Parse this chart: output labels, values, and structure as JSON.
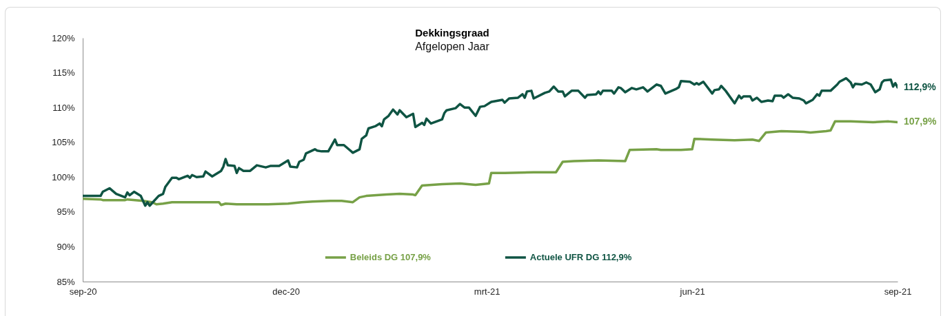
{
  "chart_data": {
    "type": "line",
    "title": "Dekkingsgraad",
    "subtitle": "Afgelopen Jaar",
    "xlim": [
      "2020-09-01",
      "2021-09-01"
    ],
    "xticks": [
      {
        "value": "2020-09-01",
        "label": "sep-20"
      },
      {
        "value": "2020-12-01",
        "label": "dec-20"
      },
      {
        "value": "2021-03-01",
        "label": "mrt-21"
      },
      {
        "value": "2021-06-01",
        "label": "jun-21"
      },
      {
        "value": "2021-09-01",
        "label": "sep-21"
      }
    ],
    "ylim": [
      85,
      120
    ],
    "yticks": [
      {
        "value": 85,
        "label": "85%"
      },
      {
        "value": 90,
        "label": "90%"
      },
      {
        "value": 95,
        "label": "95%"
      },
      {
        "value": 100,
        "label": "100%"
      },
      {
        "value": 105,
        "label": "105%"
      },
      {
        "value": 110,
        "label": "110%"
      },
      {
        "value": 115,
        "label": "115%"
      },
      {
        "value": 120,
        "label": "120%"
      }
    ],
    "legend": "bottom",
    "line_style": "solid",
    "series": [
      {
        "name": "Beleids DG 107,9%",
        "color": "#77a147",
        "x": [
          "2020-09-01",
          "2020-09-09",
          "2020-09-10",
          "2020-09-20",
          "2020-09-21",
          "2020-09-28",
          "2020-10-02",
          "2020-10-04",
          "2020-10-07",
          "2020-10-11",
          "2020-11-01",
          "2020-11-02",
          "2020-11-04",
          "2020-11-09",
          "2020-11-15",
          "2020-11-23",
          "2020-12-02",
          "2020-12-08",
          "2020-12-13",
          "2020-12-21",
          "2020-12-26",
          "2020-12-31",
          "2021-01-03",
          "2021-01-06",
          "2021-01-15",
          "2021-01-21",
          "2021-01-27",
          "2021-01-28",
          "2021-01-31",
          "2021-02-09",
          "2021-02-17",
          "2021-02-24",
          "2021-03-02",
          "2021-03-03",
          "2021-03-09",
          "2021-03-22",
          "2021-04-01",
          "2021-04-04",
          "2021-04-09",
          "2021-04-20",
          "2021-05-02",
          "2021-05-04",
          "2021-05-16",
          "2021-05-18",
          "2021-05-27",
          "2021-06-01",
          "2021-06-02",
          "2021-06-10",
          "2021-06-20",
          "2021-06-28",
          "2021-07-01",
          "2021-07-04",
          "2021-07-11",
          "2021-07-21",
          "2021-07-24",
          "2021-07-31",
          "2021-08-02",
          "2021-08-04",
          "2021-08-11",
          "2021-08-21",
          "2021-08-28",
          "2021-09-01"
        ],
        "values": [
          96.9,
          96.8,
          96.7,
          96.7,
          96.8,
          96.6,
          96.4,
          96.1,
          96.2,
          96.4,
          96.4,
          96.0,
          96.2,
          96.1,
          96.1,
          96.1,
          96.2,
          96.4,
          96.5,
          96.6,
          96.6,
          96.4,
          97.1,
          97.3,
          97.5,
          97.6,
          97.5,
          97.4,
          98.8,
          99.0,
          99.1,
          98.9,
          99.1,
          100.6,
          100.6,
          100.7,
          100.7,
          102.2,
          102.3,
          102.4,
          102.3,
          103.9,
          104.0,
          103.9,
          103.9,
          104.0,
          105.5,
          105.4,
          105.3,
          105.4,
          105.2,
          106.4,
          106.6,
          106.5,
          106.4,
          106.6,
          106.7,
          108.0,
          108.0,
          107.9,
          108.0,
          107.9
        ],
        "value_labels": [
          null,
          null,
          null,
          null,
          null,
          null,
          null,
          null,
          null,
          null,
          null,
          null,
          null,
          null,
          null,
          null,
          null,
          null,
          null,
          null,
          null,
          null,
          null,
          null,
          null,
          null,
          null,
          null,
          null,
          null,
          null,
          null,
          null,
          null,
          null,
          null,
          null,
          null,
          null,
          null,
          null,
          null,
          null,
          null,
          null,
          null,
          null,
          null,
          null,
          null,
          null,
          null,
          null,
          null,
          null,
          null,
          null,
          null,
          null,
          null,
          null,
          "107,9%"
        ]
      },
      {
        "name": "Actuele UFR DG 112,9%",
        "color": "#0f5443",
        "x": [
          "2020-09-01",
          "2020-09-09",
          "2020-09-10",
          "2020-09-13",
          "2020-09-16",
          "2020-09-20",
          "2020-09-21",
          "2020-09-22",
          "2020-09-24",
          "2020-09-27",
          "2020-09-29",
          "2020-09-30",
          "2020-10-01",
          "2020-10-05",
          "2020-10-07",
          "2020-10-08",
          "2020-10-11",
          "2020-10-13",
          "2020-10-14",
          "2020-10-18",
          "2020-10-19",
          "2020-10-20",
          "2020-10-22",
          "2020-10-25",
          "2020-10-26",
          "2020-10-29",
          "2020-11-02",
          "2020-11-03",
          "2020-11-04",
          "2020-11-05",
          "2020-11-08",
          "2020-11-09",
          "2020-11-10",
          "2020-11-12",
          "2020-11-15",
          "2020-11-18",
          "2020-11-22",
          "2020-11-24",
          "2020-11-28",
          "2020-12-02",
          "2020-12-03",
          "2020-12-06",
          "2020-12-07",
          "2020-12-09",
          "2020-12-10",
          "2020-12-14",
          "2020-12-15",
          "2020-12-17",
          "2020-12-20",
          "2020-12-23",
          "2020-12-24",
          "2020-12-27",
          "2020-12-31",
          "2021-01-03",
          "2021-01-04",
          "2021-01-06",
          "2021-01-07",
          "2021-01-10",
          "2021-01-12",
          "2021-01-13",
          "2021-01-14",
          "2021-01-16",
          "2021-01-18",
          "2021-01-20",
          "2021-01-21",
          "2021-01-24",
          "2021-01-27",
          "2021-01-28",
          "2021-01-31",
          "2021-02-01",
          "2021-02-02",
          "2021-02-04",
          "2021-02-09",
          "2021-02-10",
          "2021-02-11",
          "2021-02-15",
          "2021-02-17",
          "2021-02-19",
          "2021-02-21",
          "2021-02-24",
          "2021-02-26",
          "2021-02-28",
          "2021-03-02",
          "2021-03-03",
          "2021-03-08",
          "2021-03-09",
          "2021-03-11",
          "2021-03-15",
          "2021-03-17",
          "2021-03-18",
          "2021-03-19",
          "2021-03-21",
          "2021-03-22",
          "2021-03-27",
          "2021-03-29",
          "2021-03-31",
          "2021-04-02",
          "2021-04-04",
          "2021-04-05",
          "2021-04-08",
          "2021-04-11",
          "2021-04-14",
          "2021-04-15",
          "2021-04-19",
          "2021-04-20",
          "2021-04-21",
          "2021-04-22",
          "2021-04-26",
          "2021-04-27",
          "2021-04-29",
          "2021-04-30",
          "2021-05-02",
          "2021-05-05",
          "2021-05-07",
          "2021-05-10",
          "2021-05-12",
          "2021-05-16",
          "2021-05-18",
          "2021-05-20",
          "2021-05-25",
          "2021-05-26",
          "2021-05-27",
          "2021-05-31",
          "2021-06-02",
          "2021-06-03",
          "2021-06-04",
          "2021-06-06",
          "2021-06-10",
          "2021-06-11",
          "2021-06-13",
          "2021-06-14",
          "2021-06-16",
          "2021-06-20",
          "2021-06-22",
          "2021-06-23",
          "2021-06-24",
          "2021-06-27",
          "2021-06-28",
          "2021-06-30",
          "2021-07-02",
          "2021-07-05",
          "2021-07-07",
          "2021-07-08",
          "2021-07-11",
          "2021-07-12",
          "2021-07-14",
          "2021-07-16",
          "2021-07-19",
          "2021-07-21",
          "2021-07-22",
          "2021-07-25",
          "2021-07-27",
          "2021-07-28",
          "2021-07-29",
          "2021-08-02",
          "2021-08-05",
          "2021-08-06",
          "2021-08-09",
          "2021-08-11",
          "2021-08-12",
          "2021-08-13",
          "2021-08-16",
          "2021-08-18",
          "2021-08-20",
          "2021-08-22",
          "2021-08-24",
          "2021-08-25",
          "2021-08-26",
          "2021-08-29",
          "2021-08-30",
          "2021-08-31",
          "2021-09-01"
        ],
        "values": [
          97.3,
          97.3,
          97.9,
          98.4,
          97.6,
          97.1,
          97.8,
          97.4,
          97.9,
          97.3,
          95.9,
          96.4,
          95.9,
          97.3,
          97.6,
          98.6,
          99.9,
          99.9,
          99.7,
          100.2,
          99.9,
          100.3,
          100.0,
          100.1,
          100.8,
          100.1,
          100.9,
          101.5,
          102.6,
          101.7,
          101.6,
          100.6,
          101.3,
          100.9,
          100.9,
          101.7,
          101.4,
          101.6,
          101.6,
          102.4,
          101.5,
          101.4,
          102.2,
          102.5,
          103.4,
          104.0,
          103.8,
          103.7,
          103.7,
          105.4,
          104.6,
          104.6,
          103.5,
          104.0,
          105.5,
          106.0,
          107.0,
          107.3,
          107.7,
          107.3,
          108.3,
          108.8,
          109.7,
          109.0,
          109.6,
          108.6,
          109.1,
          107.2,
          107.8,
          107.5,
          108.4,
          107.7,
          108.3,
          109.2,
          109.6,
          109.9,
          110.5,
          110.0,
          110.0,
          108.8,
          110.1,
          110.2,
          110.6,
          110.8,
          111.1,
          110.7,
          111.3,
          111.4,
          111.9,
          111.4,
          112.3,
          112.4,
          111.3,
          112.1,
          112.3,
          113.0,
          112.3,
          112.3,
          111.6,
          112.4,
          112.4,
          111.4,
          111.8,
          111.9,
          112.3,
          111.9,
          112.4,
          112.4,
          112.0,
          112.9,
          112.8,
          112.2,
          112.8,
          112.6,
          112.9,
          112.3,
          113.3,
          113.1,
          112.0,
          112.7,
          112.9,
          113.8,
          113.7,
          113.3,
          113.5,
          113.3,
          113.7,
          112.0,
          112.5,
          112.6,
          113.1,
          112.4,
          110.6,
          111.7,
          111.3,
          111.6,
          111.6,
          111.0,
          111.4,
          110.8,
          111.0,
          110.9,
          111.7,
          111.7,
          111.4,
          111.9,
          111.4,
          111.3,
          111.0,
          110.6,
          111.1,
          111.9,
          111.7,
          112.4,
          112.4,
          113.3,
          113.7,
          114.2,
          113.6,
          112.9,
          113.4,
          113.3,
          113.6,
          113.3,
          112.2,
          112.6,
          113.6,
          113.9,
          114.0,
          113.0,
          113.5,
          112.9
        ],
        "value_labels": [
          null,
          null,
          null,
          null,
          null,
          null,
          null,
          null,
          null,
          null,
          null,
          null,
          null,
          null,
          null,
          null,
          null,
          null,
          null,
          null,
          null,
          null,
          null,
          null,
          null,
          null,
          null,
          null,
          null,
          null,
          null,
          null,
          null,
          null,
          null,
          null,
          null,
          null,
          null,
          null,
          null,
          null,
          null,
          null,
          null,
          null,
          null,
          null,
          null,
          null,
          null,
          null,
          null,
          null,
          null,
          null,
          null,
          null,
          null,
          null,
          null,
          null,
          null,
          null,
          null,
          null,
          null,
          null,
          null,
          null,
          null,
          null,
          null,
          null,
          null,
          null,
          null,
          null,
          null,
          null,
          null,
          null,
          null,
          null,
          null,
          null,
          null,
          null,
          null,
          null,
          null,
          null,
          null,
          null,
          null,
          null,
          null,
          null,
          null,
          null,
          null,
          null,
          null,
          null,
          null,
          null,
          null,
          null,
          null,
          null,
          null,
          null,
          null,
          null,
          null,
          null,
          null,
          null,
          null,
          null,
          null,
          null,
          null,
          null,
          null,
          null,
          null,
          null,
          null,
          null,
          null,
          null,
          null,
          null,
          null,
          null,
          null,
          null,
          null,
          null,
          null,
          null,
          null,
          null,
          null,
          null,
          null,
          null,
          null,
          null,
          null,
          null,
          null,
          null,
          null,
          null,
          null,
          null,
          null,
          null,
          null,
          null,
          null,
          null,
          null,
          null,
          null,
          null,
          null,
          null,
          null,
          "112,9%"
        ]
      }
    ]
  }
}
